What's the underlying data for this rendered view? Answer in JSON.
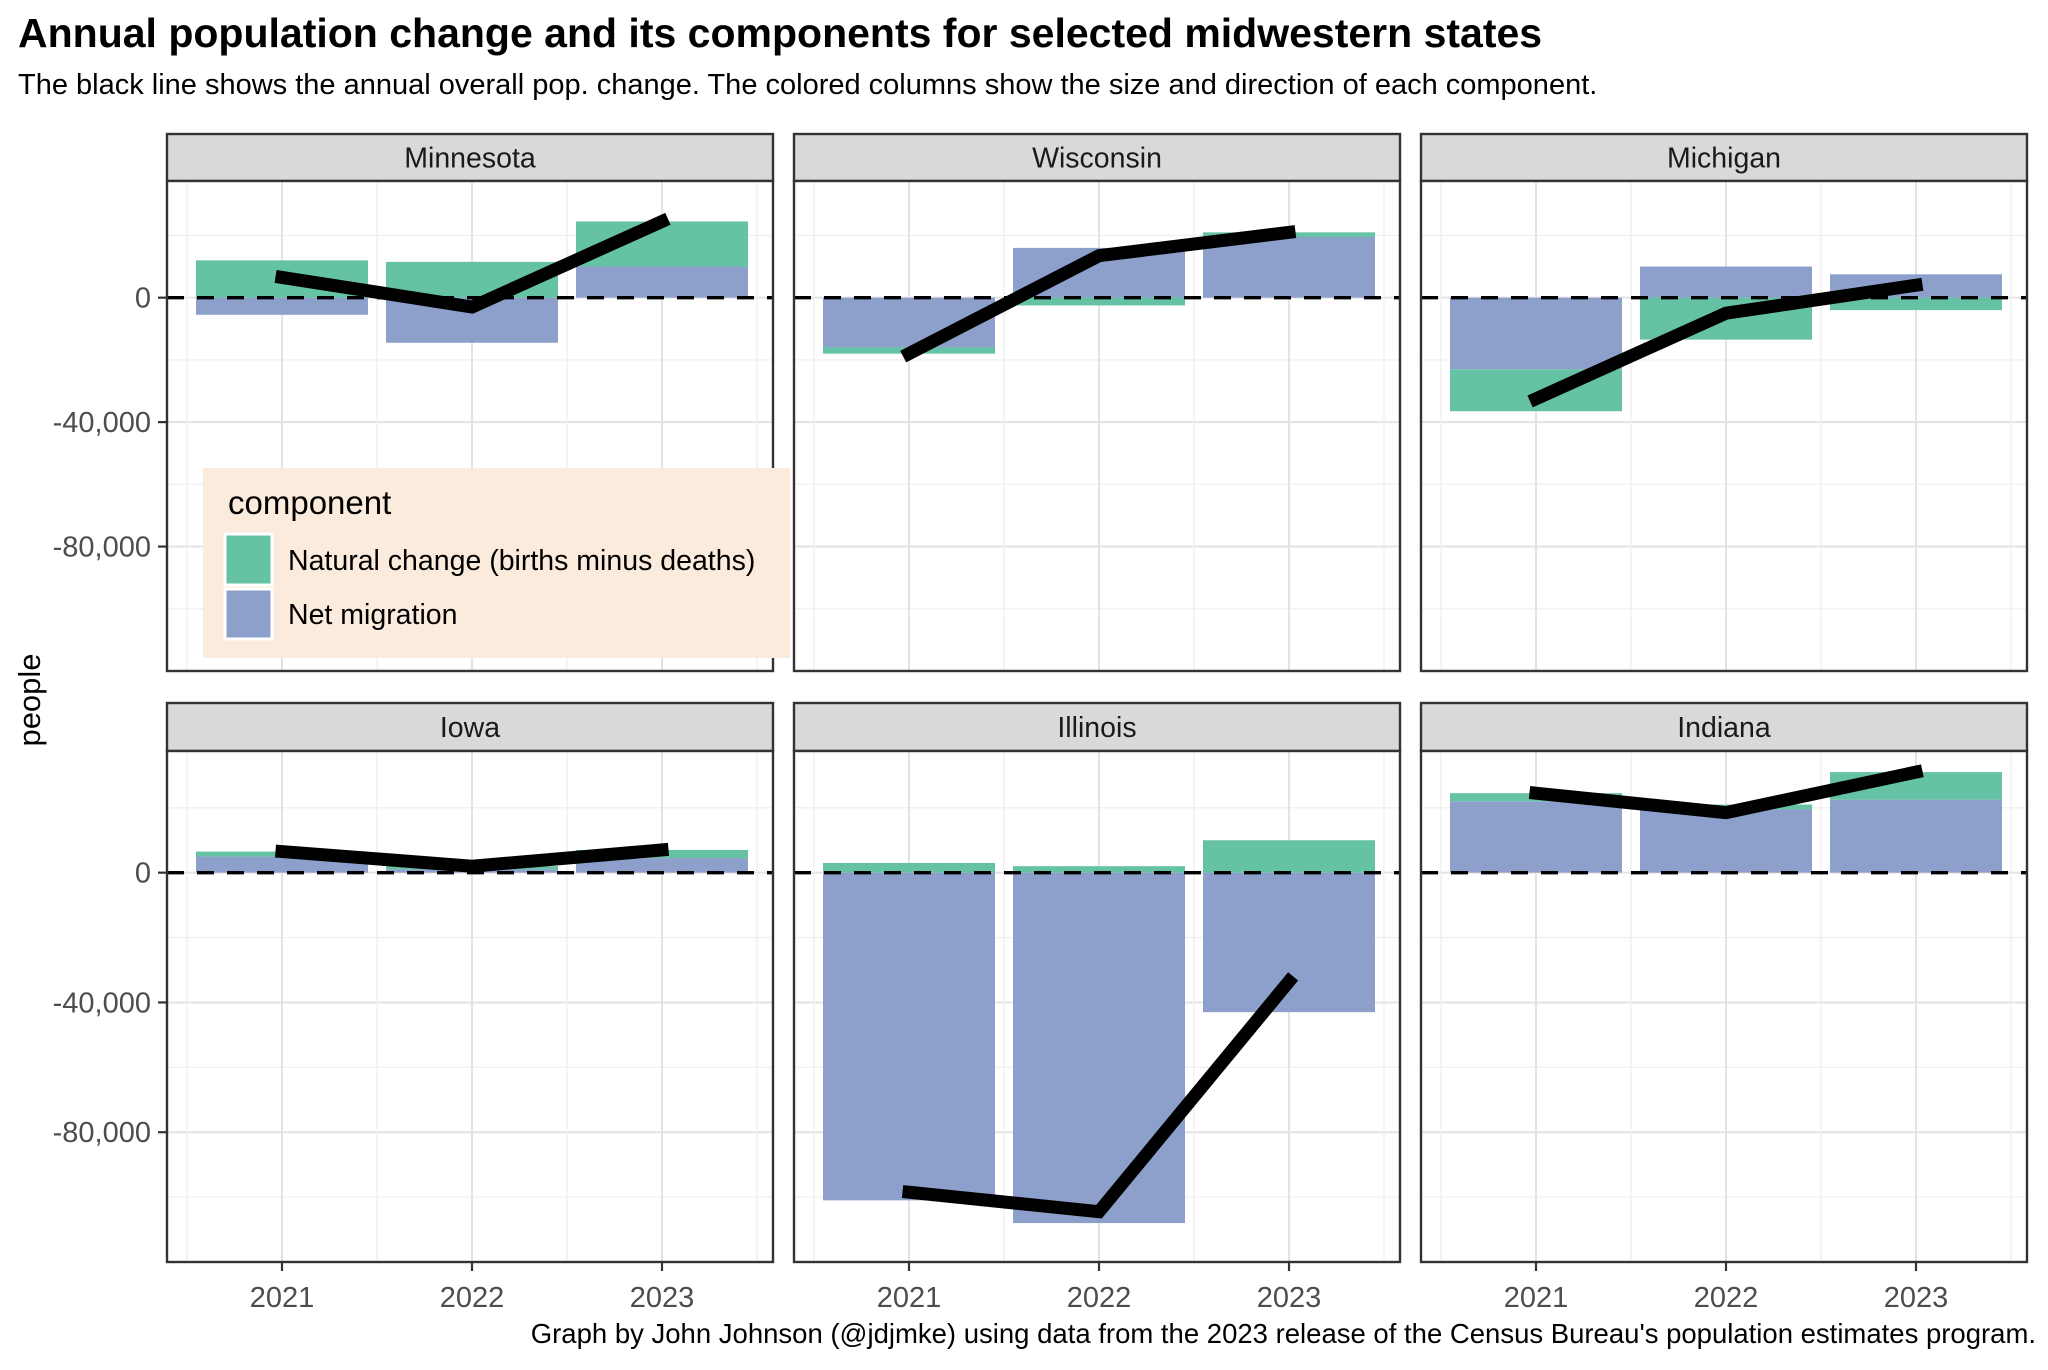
{
  "header": {
    "title": "Annual population change and its components for selected midwestern states",
    "subtitle": "The black line shows the annual overall pop. change. The colored columns show the size and direction of each component."
  },
  "caption": "Graph by John Johnson (@jdjmke) using data from the 2023 release of the Census Bureau's population estimates program.",
  "y_axis": {
    "label": "people",
    "ticks": [
      {
        "value": 0,
        "label": "0"
      },
      {
        "value": -40000,
        "label": "-40,000"
      },
      {
        "value": -80000,
        "label": "-80,000"
      }
    ],
    "minor_ticks": [
      20000,
      -20000,
      -60000,
      -100000
    ],
    "domain": [
      -120000,
      37500
    ]
  },
  "x_axis": {
    "years": [
      "2021",
      "2022",
      "2023"
    ]
  },
  "legend": {
    "title": "component",
    "items": [
      {
        "label": "Natural change (births minus deaths)",
        "key": "natural_change"
      },
      {
        "label": "Net migration",
        "key": "net_migration"
      }
    ]
  },
  "colors": {
    "natural_change": "#66C2A5",
    "net_migration": "#8DA0CB",
    "total_line": "#000000",
    "zero_line": "#000000",
    "legend_bg": "#FAEBDC",
    "strip_bg": "#D9D9D9",
    "panel_bg": "#FFFFFF",
    "panel_border": "#333333",
    "grid_major": "#E3E3E3",
    "grid_minor": "#F0F0F0",
    "axis_text": "#4D4D4D",
    "title_text": "#000000"
  },
  "chart_data": {
    "type": "bar",
    "note": "stacked column components plus overall-change line, faceted by state",
    "categories": [
      "2021",
      "2022",
      "2023"
    ],
    "ylim": [
      -120000,
      37500
    ],
    "facets": [
      {
        "state": "Minnesota",
        "row": 0,
        "col": 0,
        "natural_change": [
          12000,
          11500,
          14500
        ],
        "net_migration": [
          -5500,
          -14500,
          10000
        ],
        "total_change": [
          6500,
          -3000,
          24500
        ]
      },
      {
        "state": "Wisconsin",
        "row": 0,
        "col": 1,
        "natural_change": [
          -2000,
          -2500,
          1500
        ],
        "net_migration": [
          -16000,
          16000,
          19500
        ],
        "total_change": [
          -18000,
          13500,
          21000
        ]
      },
      {
        "state": "Michigan",
        "row": 0,
        "col": 2,
        "natural_change": [
          -13500,
          -13500,
          -4000
        ],
        "net_migration": [
          -23000,
          10000,
          7500
        ],
        "total_change": [
          -32500,
          -5000,
          4000
        ]
      },
      {
        "state": "Iowa",
        "row": 1,
        "col": 0,
        "natural_change": [
          1500,
          1000,
          2500
        ],
        "net_migration": [
          5000,
          1000,
          4500
        ],
        "total_change": [
          6500,
          2000,
          7000
        ]
      },
      {
        "state": "Illinois",
        "row": 1,
        "col": 1,
        "natural_change": [
          3000,
          2000,
          10000
        ],
        "net_migration": [
          -101000,
          -108000,
          -43000
        ],
        "total_change": [
          -98500,
          -104500,
          -33500
        ]
      },
      {
        "state": "Indiana",
        "row": 1,
        "col": 2,
        "natural_change": [
          2500,
          1500,
          8500
        ],
        "net_migration": [
          22000,
          19500,
          22500
        ],
        "total_change": [
          24500,
          18500,
          31000
        ]
      }
    ]
  }
}
